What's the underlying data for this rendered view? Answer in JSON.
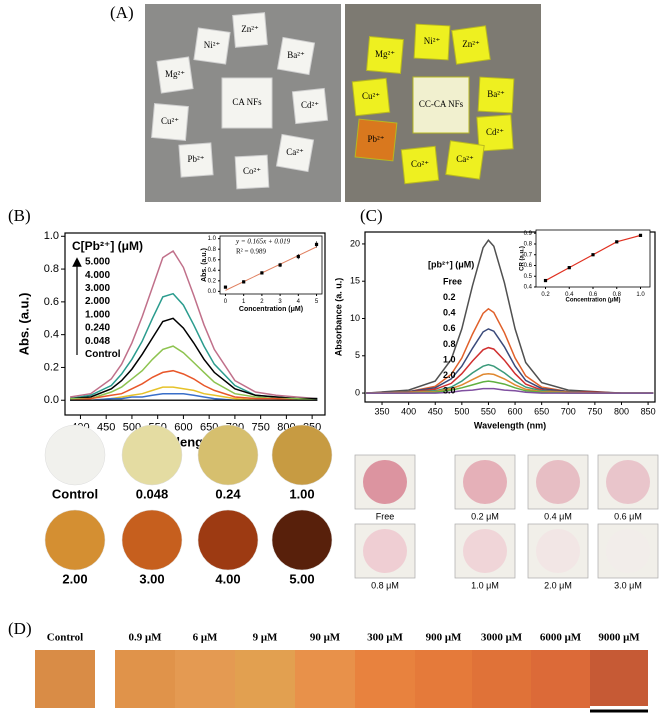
{
  "panel_labels": [
    "(A)",
    "(B)",
    "(C)",
    "(D)"
  ],
  "panel_a": {
    "left_labels": [
      "Zn²⁺",
      "Ni²⁺",
      "Ba²⁺",
      "Mg²⁺",
      "CA NFs",
      "Cu²⁺",
      "Cd²⁺",
      "Pb²⁺",
      "Ca²⁺",
      "Co²⁺"
    ],
    "right_labels": [
      "Ni²⁺",
      "Zn²⁺",
      "Mg²⁺",
      "Ba²⁺",
      "Cu²⁺",
      "CC-CA NFs",
      "Cd²⁺",
      "Pb²⁺",
      "Co²⁺",
      "Ca²⁺"
    ]
  },
  "chart_data": [
    {
      "type": "line",
      "legend_title": "C[Pb²⁺] (μM)",
      "x_label": "Wavelength (nm)",
      "y_label": "Abs. (a.u.)",
      "x": [
        380,
        420,
        460,
        480,
        500,
        520,
        540,
        560,
        580,
        600,
        620,
        640,
        660,
        700,
        740,
        780,
        820,
        860
      ],
      "xlim": [
        370,
        875
      ],
      "ylim": [
        -0.09,
        1.02
      ],
      "xticks": [
        400,
        450,
        500,
        550,
        600,
        650,
        700,
        750,
        800,
        850
      ],
      "yticks": [
        {
          "value": 0,
          "label": "0.0"
        },
        0.2,
        0.4,
        0.6,
        0.8,
        {
          "value": 1,
          "label": "1.0"
        }
      ],
      "series": [
        {
          "name": "5.000",
          "color": "#c0708a",
          "values": [
            0.02,
            0.04,
            0.13,
            0.22,
            0.35,
            0.51,
            0.69,
            0.87,
            0.91,
            0.81,
            0.64,
            0.46,
            0.31,
            0.12,
            0.05,
            0.03,
            0.02,
            0.01
          ]
        },
        {
          "name": "4.000",
          "color": "#2b9c8e",
          "values": [
            0.01,
            0.03,
            0.09,
            0.16,
            0.25,
            0.36,
            0.5,
            0.63,
            0.65,
            0.58,
            0.46,
            0.33,
            0.22,
            0.09,
            0.03,
            0.02,
            0.01,
            0.01
          ]
        },
        {
          "name": "3.000",
          "color": "#000000",
          "values": [
            0.01,
            0.02,
            0.07,
            0.12,
            0.19,
            0.28,
            0.38,
            0.48,
            0.5,
            0.44,
            0.35,
            0.25,
            0.17,
            0.07,
            0.03,
            0.02,
            0.01,
            0.01
          ]
        },
        {
          "name": "2.000",
          "color": "#8dc34f",
          "values": [
            0.01,
            0.01,
            0.05,
            0.08,
            0.13,
            0.18,
            0.25,
            0.31,
            0.33,
            0.29,
            0.23,
            0.17,
            0.11,
            0.04,
            0.02,
            0.01,
            0.01,
            0
          ]
        },
        {
          "name": "1.000",
          "color": "#e8572a",
          "values": [
            0,
            0.01,
            0.03,
            0.04,
            0.07,
            0.1,
            0.14,
            0.17,
            0.18,
            0.16,
            0.13,
            0.09,
            0.06,
            0.02,
            0.01,
            0.01,
            0,
            0
          ]
        },
        {
          "name": "0.240",
          "color": "#e6c229",
          "values": [
            0,
            0,
            0.01,
            0.02,
            0.03,
            0.04,
            0.06,
            0.08,
            0.08,
            0.07,
            0.06,
            0.04,
            0.03,
            0.01,
            0,
            0,
            0,
            0
          ]
        },
        {
          "name": "0.048",
          "color": "#3a6fc9",
          "values": [
            0,
            0,
            0.01,
            0.01,
            0.02,
            0.02,
            0.03,
            0.04,
            0.04,
            0.04,
            0.03,
            0.02,
            0.01,
            0,
            0,
            0,
            0,
            0
          ]
        },
        {
          "name": "Control",
          "color": "#222222",
          "values": [
            0,
            0,
            0,
            0,
            0,
            0,
            0,
            0,
            0,
            0,
            0,
            0,
            0,
            0,
            0,
            0,
            0,
            0
          ]
        }
      ]
    },
    {
      "type": "scatter",
      "x_label": "Concentration (μM)",
      "y_label": "Abs. (a.u.)",
      "fit_line": {
        "label": "y = 0.165x + 0.019",
        "slope": 0.165,
        "intercept": 0.019,
        "color": "#e08060"
      },
      "r_squared_label": "R² = 0.989",
      "x": [
        0,
        1,
        2,
        3,
        4,
        5
      ],
      "xlim": [
        -0.3,
        5.3
      ],
      "ylim": [
        -0.05,
        1.05
      ],
      "xticks": [
        0,
        1,
        2,
        3,
        4,
        5
      ],
      "yticks": [
        {
          "value": 0,
          "label": "0.0"
        },
        0.2,
        0.4,
        0.6,
        0.8,
        {
          "value": 1,
          "label": "1.0"
        }
      ],
      "series": [
        {
          "color": "#000000",
          "values": [
            0.08,
            0.18,
            0.35,
            0.5,
            0.66,
            0.89
          ],
          "errors": [
            0.02,
            0.03,
            0.03,
            0.04,
            0.05,
            0.06
          ]
        }
      ]
    },
    {
      "type": "line",
      "legend_title": "[pb²⁺] (μM)",
      "x_label": "Wavelength (nm)",
      "y_label": "Absorbance (a. u.)",
      "x": [
        320,
        400,
        450,
        480,
        500,
        520,
        540,
        550,
        560,
        580,
        600,
        620,
        650,
        700,
        750,
        800,
        860
      ],
      "xlim": [
        318,
        863
      ],
      "ylim": [
        -1.2,
        21.6
      ],
      "xticks": [
        350,
        400,
        450,
        500,
        550,
        600,
        650,
        700,
        750,
        800,
        850
      ],
      "yticks": [
        0,
        5,
        10,
        15,
        20
      ],
      "series": [
        {
          "name": "Free",
          "color": "#505050",
          "values": [
            0,
            0.4,
            1.6,
            4.5,
            8.6,
            14.4,
            19.5,
            20.5,
            19.7,
            14.8,
            8.6,
            4.1,
            1.4,
            0.4,
            0.2,
            0,
            0
          ]
        },
        {
          "name": "0.2",
          "color": "#e0602a",
          "values": [
            0,
            0.2,
            0.9,
            2.5,
            4.7,
            7.9,
            10.7,
            11.3,
            10.8,
            8.1,
            4.7,
            2.3,
            0.8,
            0.2,
            0.1,
            0,
            0
          ]
        },
        {
          "name": "0.4",
          "color": "#3a4a7a",
          "values": [
            0,
            0.2,
            0.7,
            1.9,
            3.6,
            6,
            8.2,
            8.6,
            8.3,
            6.2,
            3.6,
            1.7,
            0.6,
            0.2,
            0.1,
            0,
            0
          ]
        },
        {
          "name": "0.6",
          "color": "#d03030",
          "values": [
            0,
            0.1,
            0.5,
            1.3,
            2.6,
            4.3,
            5.8,
            6.1,
            5.9,
            4.4,
            2.6,
            1.2,
            0.4,
            0.1,
            0.1,
            0,
            0
          ]
        },
        {
          "name": "0.8",
          "color": "#3a9a7a",
          "values": [
            0,
            0.1,
            0.3,
            0.8,
            1.6,
            2.7,
            3.6,
            3.8,
            3.6,
            2.7,
            1.6,
            0.8,
            0.3,
            0.1,
            0,
            0,
            0
          ]
        },
        {
          "name": "1.0",
          "color": "#e08830",
          "values": [
            0,
            0.1,
            0.2,
            0.6,
            1.1,
            1.8,
            2.5,
            2.6,
            2.5,
            1.9,
            1.1,
            0.5,
            0.2,
            0.1,
            0,
            0,
            0
          ]
        },
        {
          "name": "2.0",
          "color": "#60b040",
          "values": [
            0,
            0,
            0.1,
            0.4,
            0.7,
            1.1,
            1.5,
            1.6,
            1.5,
            1.2,
            0.7,
            0.3,
            0.1,
            0,
            0,
            0,
            0
          ]
        },
        {
          "name": "3.0",
          "color": "#8050a0",
          "values": [
            0,
            0,
            0,
            0.1,
            0.3,
            0.4,
            0.6,
            0.6,
            0.6,
            0.4,
            0.3,
            0.1,
            0,
            0,
            0,
            0,
            0
          ]
        }
      ]
    },
    {
      "type": "scatter",
      "x_label": "Concentration (μM)",
      "y_label": "CR (a.u.)",
      "x": [
        0.2,
        0.4,
        0.6,
        0.8,
        1.0
      ],
      "xlim": [
        0.12,
        1.08
      ],
      "ylim": [
        0.4,
        0.93
      ],
      "xticks": [
        0.2,
        0.4,
        0.6,
        0.8,
        {
          "value": 1,
          "label": "1.0"
        }
      ],
      "yticks": [
        0.4,
        0.5,
        0.6,
        0.7,
        0.8,
        0.9
      ],
      "series": [
        {
          "color": "#000000",
          "line_color": "#e03020",
          "values": [
            0.46,
            0.58,
            0.7,
            0.82,
            0.88
          ]
        }
      ]
    }
  ],
  "panel_b_photos": {
    "labels": [
      "Control",
      "0.048",
      "0.24",
      "1.00",
      "2.00",
      "3.00",
      "4.00",
      "5.00"
    ]
  },
  "panel_c_photos": {
    "labels": [
      "Free",
      "0.2 μM",
      "0.4 μM",
      "0.6 μM",
      "0.8 μM",
      "1.0 μM",
      "2.0 μM",
      "3.0 μM"
    ]
  },
  "panel_d": {
    "labels": [
      "Control",
      "0.9 μM",
      "6 μM",
      "9 μM",
      "90 μM",
      "300 μM",
      "900 μM",
      "3000 μM",
      "6000 μM",
      "9000 μM"
    ]
  }
}
